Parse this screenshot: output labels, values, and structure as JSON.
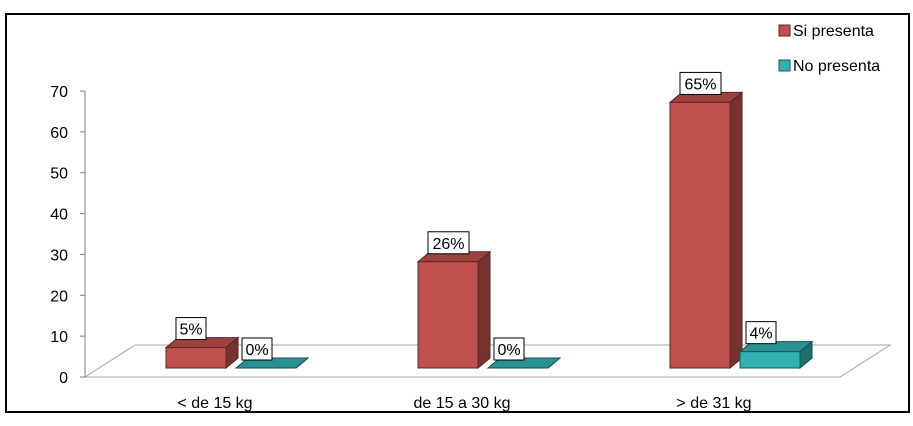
{
  "chart_data": {
    "type": "bar",
    "style": "3d-clustered-column",
    "categories": [
      "< de 15 kg",
      "de 15 a 30 kg",
      "> de 31 kg"
    ],
    "series": [
      {
        "name": "Si presenta",
        "color": "#c0504d",
        "values": [
          5,
          26,
          65
        ],
        "labels": [
          "5%",
          "26%",
          "65%"
        ]
      },
      {
        "name": "No presenta",
        "color": "#31b2b2",
        "values": [
          0,
          0,
          4
        ],
        "labels": [
          "0%",
          "0%",
          "4%"
        ]
      }
    ],
    "ylim": [
      0,
      70
    ],
    "yticks": [
      0,
      10,
      20,
      30,
      40,
      50,
      60,
      70
    ],
    "grid": false,
    "legend_position": "top-right"
  }
}
